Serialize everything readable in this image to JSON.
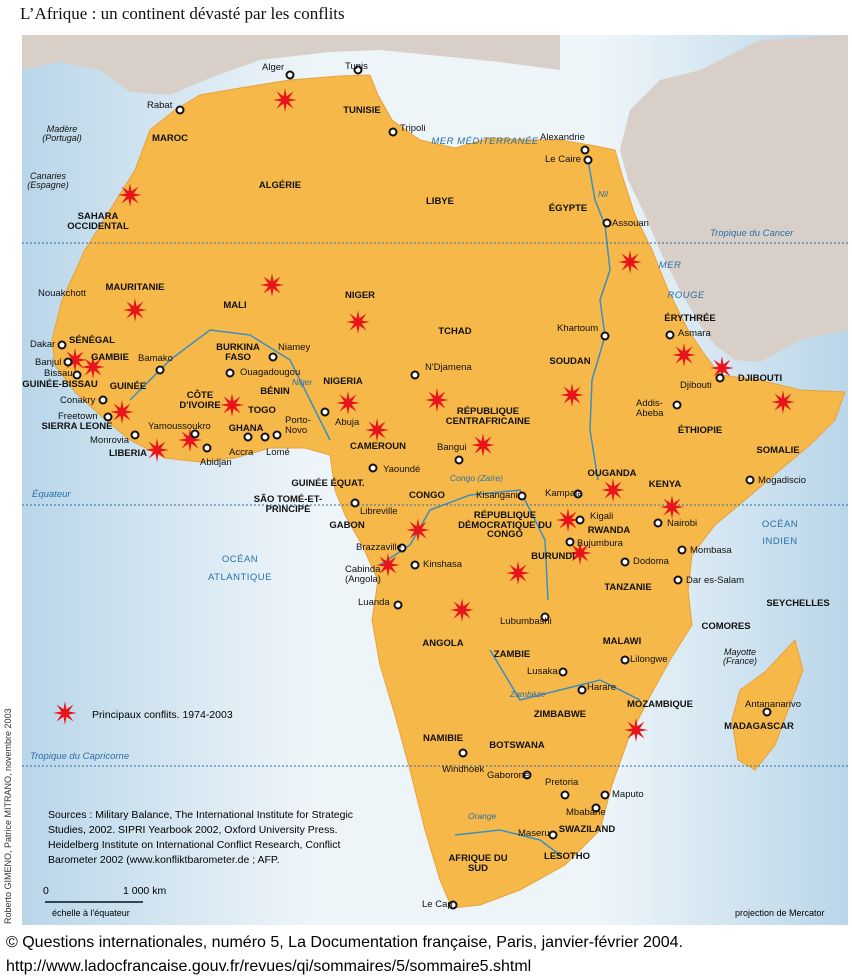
{
  "title": "L’Afrique : un continent dévasté par les conflits",
  "colors": {
    "land": "#f7b84a",
    "ocean": "#cfe3ef",
    "other_land": "#d8d0c8",
    "conflict": "#e8141b",
    "water_text": "#2a6fa8"
  },
  "countries": [
    "MAROC",
    "ALGÉRIE",
    "TUNISIE",
    "LIBYE",
    "ÉGYPTE",
    "SAHARA OCCIDENTAL",
    "MAURITANIE",
    "MALI",
    "NIGER",
    "TCHAD",
    "SOUDAN",
    "ÉRYTHRÉE",
    "DJIBOUTI",
    "ÉTHIOPIE",
    "SOMALIE",
    "SÉNÉGAL",
    "GAMBIE",
    "GUINÉE-BISSAU",
    "GUINÉE",
    "SIERRA LEONE",
    "LIBERIA",
    "CÔTE D'IVOIRE",
    "BURKINA FASO",
    "GHANA",
    "TOGO",
    "BÉNIN",
    "NIGERIA",
    "CAMEROUN",
    "RÉPUBLIQUE CENTRAFRICAINE",
    "SÃO TOMÉ-ET-PRINCIPE",
    "GUINÉE ÉQUAT.",
    "GABON",
    "CONGO",
    "RÉPUBLIQUE DÉMOCRATIQUE DU CONGO",
    "OUGANDA",
    "KENYA",
    "RWANDA",
    "BURUNDI",
    "TANZANIE",
    "SEYCHELLES",
    "COMORES",
    "ANGOLA",
    "ZAMBIE",
    "MALAWI",
    "MOZAMBIQUE",
    "ZIMBABWE",
    "MADAGASCAR",
    "NAMIBIE",
    "BOTSWANA",
    "SWAZILAND",
    "LESOTHO",
    "AFRIQUE DU SUD"
  ],
  "cities": [
    "Alger",
    "Tunis",
    "Rabat",
    "Tripoli",
    "Alexandrie",
    "Le Caire",
    "Assouan",
    "Nouakchott",
    "Dakar",
    "Banjul",
    "Bissau",
    "Bamako",
    "Conakry",
    "Freetown",
    "Monrovia",
    "Abidjan",
    "Yamoussoukro",
    "Ouagadougou",
    "Niamey",
    "Accra",
    "Lomé",
    "Porto-Novo",
    "Abuja",
    "N'Djamena",
    "Khartoum",
    "Asmara",
    "Djibouti",
    "Addis-Abeba",
    "Mogadiscio",
    "Bangui",
    "Yaoundé",
    "Libreville",
    "Kisangani",
    "Kampala",
    "Kigali",
    "Bujumbura",
    "Nairobi",
    "Mombasa",
    "Dodoma",
    "Dar es-Salam",
    "Brazzaville",
    "Kinshasa",
    "Cabinda (Angola)",
    "Luanda",
    "Lubumbashi",
    "Lilongwe",
    "Lusaka",
    "Harare",
    "Antananarivo",
    "Windhoek",
    "Gaborone",
    "Pretoria",
    "Maputo",
    "Mbabane",
    "Maseru",
    "Le Cap"
  ],
  "seas": [
    "MER MÉDITERRANÉE",
    "MER",
    "ROUGE",
    "OCÉAN",
    "ATLANTIQUE",
    "OCÉAN",
    "INDIEN"
  ],
  "islands": [
    "Madère (Portugal)",
    "Canaries (Espagne)",
    "Mayotte (France)"
  ],
  "rivers": [
    "Nil",
    "Niger",
    "Congo (Zaïre)",
    "Zambèze",
    "Orange"
  ],
  "lines": {
    "cancer": "Tropique du Cancer",
    "equator": "Équateur",
    "capricorn": "Tropique du Capricorne"
  },
  "legend": {
    "conflict_label": "Principaux conflits. 1974-2003",
    "icon": "red-star-burst"
  },
  "sources": "Sources : Military Balance, The International Institute for Strategic Studies, 2002. SIPRI Yearbook 2002, Oxford University Press. Heidelberg Institute on International Conflict Research, Conflict Barometer 2002 (www.konfliktbarometer.de ; AFP.",
  "scale": {
    "zero": "0",
    "max": "1 000 km",
    "note": "échelle à l'équateur"
  },
  "credit": "Roberto GIMENO, Patrice MITRANO, novembre 2003",
  "projection": "projection de Mercator",
  "footer": {
    "line1": "© Questions internationales, numéro 5, La Documentation française, Paris, janvier-février 2004.",
    "line2": "http://www.ladocfrancaise.gouv.fr/revues/qi/sommaires/5/sommaire5.shtml"
  }
}
